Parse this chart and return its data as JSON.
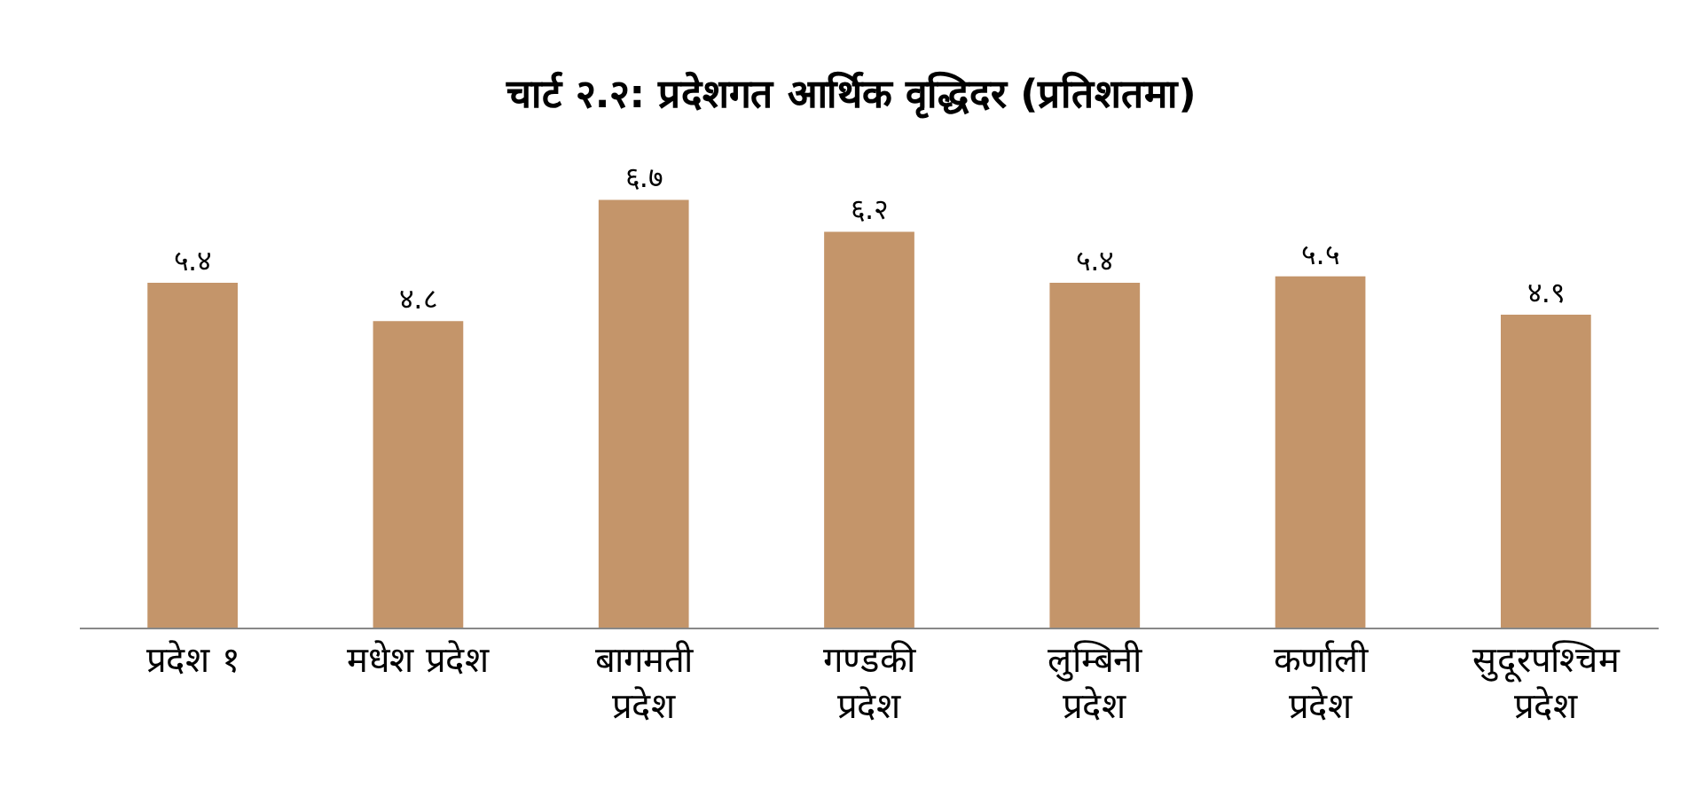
{
  "chart_data": {
    "type": "bar",
    "title": "चार्ट २.२: प्रदेशगत आर्थिक वृद्धिदर (प्रतिशतमा)",
    "categories": [
      "प्रदेश १",
      "मधेश प्रदेश",
      "बागमती प्रदेश",
      "गण्डकी प्रदेश",
      "लुम्बिनी प्रदेश",
      "कर्णाली प्रदेश",
      "सुदूरपश्चिम प्रदेश"
    ],
    "values": [
      5.4,
      4.8,
      6.7,
      6.2,
      5.4,
      5.5,
      4.9
    ],
    "value_labels": [
      "५.४",
      "४.८",
      "६.७",
      "६.२",
      "५.४",
      "५.५",
      "४.९"
    ],
    "color": "#c4956a",
    "grid": false,
    "legend": false
  }
}
